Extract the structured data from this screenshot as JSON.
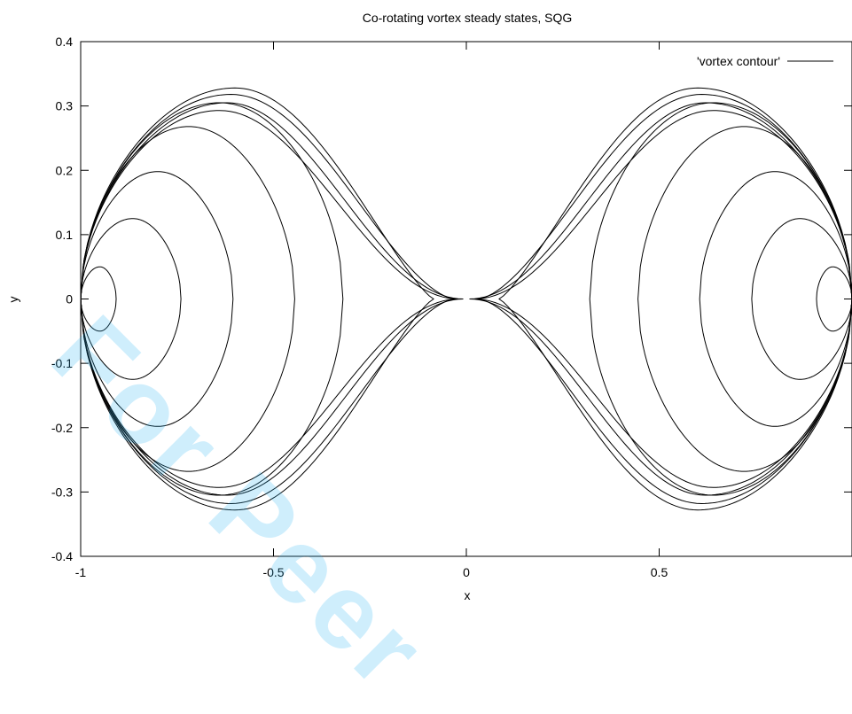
{
  "chart_data": {
    "type": "line",
    "title": "Co-rotating vortex steady states, SQG",
    "xlabel": "x",
    "ylabel": "y",
    "xlim": [
      -1,
      1
    ],
    "ylim": [
      -0.4,
      0.4
    ],
    "x_ticks": [
      {
        "value": -1,
        "label": "-1"
      },
      {
        "value": -0.5,
        "label": "-0.5"
      },
      {
        "value": 0,
        "label": "0"
      },
      {
        "value": 0.5,
        "label": "0.5"
      }
    ],
    "y_ticks": [
      {
        "value": -0.4,
        "label": "-0.4"
      },
      {
        "value": -0.3,
        "label": "-0.3"
      },
      {
        "value": -0.2,
        "label": "-0.2"
      },
      {
        "value": -0.1,
        "label": "-0.1"
      },
      {
        "value": 0,
        "label": "0"
      },
      {
        "value": 0.1,
        "label": "0.1"
      },
      {
        "value": 0.2,
        "label": "0.2"
      },
      {
        "value": 0.3,
        "label": "0.3"
      },
      {
        "value": 0.4,
        "label": "0.4"
      }
    ],
    "grid": false,
    "legend": {
      "position": "top-right",
      "entries": [
        {
          "label": "'vortex contour'",
          "color": "#000000"
        }
      ]
    },
    "series": [
      {
        "contours": [
          {
            "outer": -1.0,
            "inner": -0.908,
            "ymax": 0.05,
            "peak": -0.95,
            "s_out": 0.5,
            "s_in": 0.5
          },
          {
            "outer": -1.0,
            "inner": -0.74,
            "ymax": 0.125,
            "peak": -0.865,
            "s_out": 0.5,
            "s_in": 0.5
          },
          {
            "outer": -1.0,
            "inner": -0.605,
            "ymax": 0.198,
            "peak": -0.8,
            "s_out": 0.5,
            "s_in": 0.5
          },
          {
            "outer": -1.0,
            "inner": -0.445,
            "ymax": 0.268,
            "peak": -0.72,
            "s_out": 0.5,
            "s_in": 0.5
          },
          {
            "outer": -1.0,
            "inner": -0.32,
            "ymax": 0.305,
            "peak": -0.64,
            "s_out": 0.5,
            "s_in": 0.5
          },
          {
            "outer": -1.0,
            "inner": -0.02,
            "ymax": 0.293,
            "peak": -0.64,
            "s_out": 0.5,
            "s_in": 2.0
          },
          {
            "outer": -1.0,
            "inner": -0.008,
            "ymax": 0.305,
            "peak": -0.62,
            "s_out": 0.5,
            "s_in": 2.0
          },
          {
            "outer": -1.0,
            "inner": -0.03,
            "ymax": 0.318,
            "peak": -0.61,
            "s_out": 0.5,
            "s_in": 1.6
          },
          {
            "outer": -1.0,
            "inner": -0.085,
            "ymax": 0.328,
            "peak": -0.6,
            "s_out": 0.5,
            "s_in": 1.25
          }
        ]
      }
    ]
  }
}
